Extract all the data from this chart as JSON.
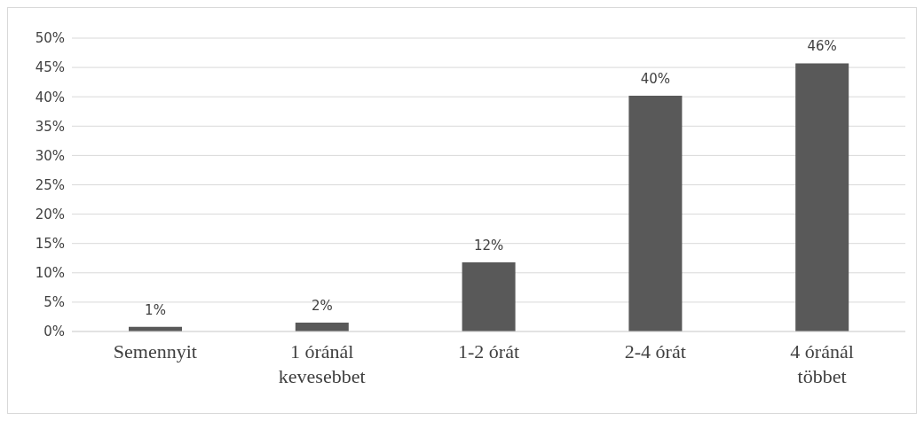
{
  "chart_data": {
    "type": "bar",
    "categories": [
      "Semennyit",
      "1 óránál kevesebbet",
      "1-2 órát",
      "2-4 órát",
      "4 óránál többet"
    ],
    "values": [
      0.8,
      1.5,
      11.8,
      40.2,
      45.7
    ],
    "value_labels": [
      "1%",
      "2%",
      "12%",
      "40%",
      "46%"
    ],
    "color": "#595959",
    "ylim": [
      0,
      50
    ],
    "yticks": [
      {
        "value": 0,
        "label": "0%"
      },
      {
        "value": 5,
        "label": "5%"
      },
      {
        "value": 10,
        "label": "10%"
      },
      {
        "value": 15,
        "label": "15%"
      },
      {
        "value": 20,
        "label": "20%"
      },
      {
        "value": 25,
        "label": "25%"
      },
      {
        "value": 30,
        "label": "30%"
      },
      {
        "value": 35,
        "label": "35%"
      },
      {
        "value": 40,
        "label": "40%"
      },
      {
        "value": 45,
        "label": "45%"
      },
      {
        "value": 50,
        "label": "50%"
      }
    ],
    "grid": "y"
  }
}
